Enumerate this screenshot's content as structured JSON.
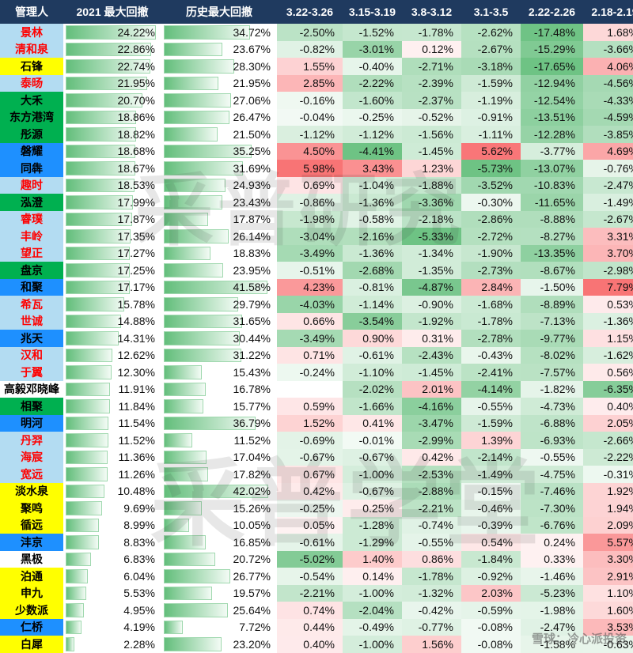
{
  "chart_data": {
    "type": "table",
    "columns": [
      "管理人",
      "2021 最大回撤",
      "历史最大回撤",
      "3.22-3.26",
      "3.15-3.19",
      "3.8-3.12",
      "3.1-3.5",
      "2.22-2.26",
      "2.18-2.19"
    ],
    "rows": [
      {
        "name": "景林",
        "name_bg": "#b3dcf2",
        "name_color": "#ff0000",
        "dd2021": "24.22%",
        "dd_hist": "34.72%",
        "w": [
          "-2.50%",
          "-1.52%",
          "-1.78%",
          "-2.62%",
          "-17.48%",
          "1.68%"
        ]
      },
      {
        "name": "清和泉",
        "name_bg": "#b3dcf2",
        "name_color": "#ff0000",
        "dd2021": "22.86%",
        "dd_hist": "23.67%",
        "w": [
          "-0.82%",
          "-3.01%",
          "0.12%",
          "-2.67%",
          "-15.29%",
          "-3.66%"
        ]
      },
      {
        "name": "石锋",
        "name_bg": "#ffff00",
        "name_color": "#000000",
        "dd2021": "22.74%",
        "dd_hist": "28.30%",
        "w": [
          "1.55%",
          "-0.40%",
          "-2.71%",
          "-3.18%",
          "-17.65%",
          "4.06%"
        ]
      },
      {
        "name": "泰旸",
        "name_bg": "#b3dcf2",
        "name_color": "#ff0000",
        "dd2021": "21.95%",
        "dd_hist": "21.95%",
        "w": [
          "2.85%",
          "-2.22%",
          "-2.39%",
          "-1.59%",
          "-12.94%",
          "-4.56%"
        ]
      },
      {
        "name": "大禾",
        "name_bg": "#00b050",
        "name_color": "#000000",
        "dd2021": "20.70%",
        "dd_hist": "27.06%",
        "w": [
          "-0.16%",
          "-1.60%",
          "-2.37%",
          "-1.19%",
          "-12.54%",
          "-4.33%"
        ]
      },
      {
        "name": "东方港湾",
        "name_bg": "#00b050",
        "name_color": "#000000",
        "dd2021": "18.86%",
        "dd_hist": "26.47%",
        "w": [
          "-0.04%",
          "-0.25%",
          "-0.52%",
          "-0.91%",
          "-13.51%",
          "-4.59%"
        ]
      },
      {
        "name": "彤源",
        "name_bg": "#00b050",
        "name_color": "#000000",
        "dd2021": "18.82%",
        "dd_hist": "21.50%",
        "w": [
          "-1.12%",
          "-1.12%",
          "-1.56%",
          "-1.11%",
          "-12.28%",
          "-3.85%"
        ]
      },
      {
        "name": "磐耀",
        "name_bg": "#1e90ff",
        "name_color": "#000000",
        "dd2021": "18.68%",
        "dd_hist": "35.25%",
        "w": [
          "4.50%",
          "-4.41%",
          "-1.45%",
          "5.62%",
          "-3.77%",
          "4.69%"
        ]
      },
      {
        "name": "同犇",
        "name_bg": "#1e90ff",
        "name_color": "#000000",
        "dd2021": "18.67%",
        "dd_hist": "31.69%",
        "w": [
          "5.98%",
          "3.43%",
          "1.23%",
          "-5.73%",
          "-13.07%",
          "-0.76%"
        ]
      },
      {
        "name": "趣时",
        "name_bg": "#b3dcf2",
        "name_color": "#ff0000",
        "dd2021": "18.53%",
        "dd_hist": "24.93%",
        "w": [
          "0.69%",
          "-1.04%",
          "-1.88%",
          "-3.52%",
          "-10.83%",
          "-2.47%"
        ]
      },
      {
        "name": "泓澄",
        "name_bg": "#00b050",
        "name_color": "#000000",
        "dd2021": "17.99%",
        "dd_hist": "23.43%",
        "w": [
          "-0.86%",
          "-1.36%",
          "-3.36%",
          "-0.30%",
          "-11.65%",
          "-1.49%"
        ]
      },
      {
        "name": "睿璞",
        "name_bg": "#b3dcf2",
        "name_color": "#ff0000",
        "dd2021": "17.87%",
        "dd_hist": "17.87%",
        "w": [
          "-1.98%",
          "-0.58%",
          "-2.18%",
          "-2.86%",
          "-8.88%",
          "-2.67%"
        ]
      },
      {
        "name": "丰岭",
        "name_bg": "#b3dcf2",
        "name_color": "#ff0000",
        "dd2021": "17.35%",
        "dd_hist": "26.14%",
        "w": [
          "-3.04%",
          "-2.16%",
          "-5.33%",
          "-2.72%",
          "-8.27%",
          "3.31%"
        ]
      },
      {
        "name": "望正",
        "name_bg": "#b3dcf2",
        "name_color": "#ff0000",
        "dd2021": "17.27%",
        "dd_hist": "18.83%",
        "w": [
          "-3.49%",
          "-1.36%",
          "-1.34%",
          "-1.90%",
          "-13.35%",
          "3.70%"
        ]
      },
      {
        "name": "盘京",
        "name_bg": "#00b050",
        "name_color": "#000000",
        "dd2021": "17.25%",
        "dd_hist": "23.95%",
        "w": [
          "-0.51%",
          "-2.68%",
          "-1.35%",
          "-2.73%",
          "-8.67%",
          "-2.98%"
        ]
      },
      {
        "name": "和聚",
        "name_bg": "#1e90ff",
        "name_color": "#000000",
        "dd2021": "17.17%",
        "dd_hist": "41.58%",
        "w": [
          "4.23%",
          "-0.81%",
          "-4.87%",
          "2.84%",
          "-1.50%",
          "7.79%"
        ]
      },
      {
        "name": "希瓦",
        "name_bg": "#b3dcf2",
        "name_color": "#ff0000",
        "dd2021": "15.78%",
        "dd_hist": "29.79%",
        "w": [
          "-4.03%",
          "-1.14%",
          "-0.90%",
          "-1.68%",
          "-8.89%",
          "0.53%"
        ]
      },
      {
        "name": "世诚",
        "name_bg": "#b3dcf2",
        "name_color": "#ff0000",
        "dd2021": "14.88%",
        "dd_hist": "31.65%",
        "w": [
          "0.66%",
          "-3.54%",
          "-1.92%",
          "-1.78%",
          "-7.13%",
          "-1.36%"
        ]
      },
      {
        "name": "兆天",
        "name_bg": "#1e90ff",
        "name_color": "#000000",
        "dd2021": "14.31%",
        "dd_hist": "30.44%",
        "w": [
          "-3.49%",
          "0.90%",
          "0.31%",
          "-2.78%",
          "-9.77%",
          "1.15%"
        ]
      },
      {
        "name": "汉和",
        "name_bg": "#b3dcf2",
        "name_color": "#ff0000",
        "dd2021": "12.62%",
        "dd_hist": "31.22%",
        "w": [
          "0.71%",
          "-0.61%",
          "-2.43%",
          "-0.43%",
          "-8.02%",
          "-1.62%"
        ]
      },
      {
        "name": "于翼",
        "name_bg": "#b3dcf2",
        "name_color": "#ff0000",
        "dd2021": "12.30%",
        "dd_hist": "15.43%",
        "w": [
          "-0.24%",
          "-1.10%",
          "-1.45%",
          "-2.41%",
          "-7.57%",
          "0.56%"
        ]
      },
      {
        "name": "高毅邓晓峰",
        "name_bg": "#ffffff",
        "name_color": "#000000",
        "dd2021": "11.91%",
        "dd_hist": "16.78%",
        "w": [
          "",
          "-2.02%",
          "2.01%",
          "-4.14%",
          "-1.82%",
          "-6.35%"
        ]
      },
      {
        "name": "相聚",
        "name_bg": "#00b050",
        "name_color": "#000000",
        "dd2021": "11.84%",
        "dd_hist": "15.77%",
        "w": [
          "0.59%",
          "-1.66%",
          "-4.16%",
          "-0.55%",
          "-4.73%",
          "0.40%"
        ]
      },
      {
        "name": "明河",
        "name_bg": "#1e90ff",
        "name_color": "#000000",
        "dd2021": "11.54%",
        "dd_hist": "36.79%",
        "w": [
          "1.52%",
          "0.41%",
          "-3.47%",
          "-1.59%",
          "-6.88%",
          "2.05%"
        ]
      },
      {
        "name": "丹羿",
        "name_bg": "#b3dcf2",
        "name_color": "#ff0000",
        "dd2021": "11.52%",
        "dd_hist": "11.52%",
        "w": [
          "-0.69%",
          "-0.01%",
          "-2.99%",
          "1.39%",
          "-6.93%",
          "-2.66%"
        ]
      },
      {
        "name": "海宸",
        "name_bg": "#b3dcf2",
        "name_color": "#ff0000",
        "dd2021": "11.36%",
        "dd_hist": "17.04%",
        "w": [
          "-0.67%",
          "-0.67%",
          "0.42%",
          "-2.14%",
          "-0.55%",
          "-2.22%"
        ]
      },
      {
        "name": "宽远",
        "name_bg": "#b3dcf2",
        "name_color": "#ff0000",
        "dd2021": "11.26%",
        "dd_hist": "17.82%",
        "w": [
          "0.67%",
          "-1.00%",
          "-2.53%",
          "-1.49%",
          "-4.75%",
          "-0.31%"
        ]
      },
      {
        "name": "淡水泉",
        "name_bg": "#ffff00",
        "name_color": "#000000",
        "dd2021": "10.48%",
        "dd_hist": "42.02%",
        "w": [
          "0.42%",
          "-0.67%",
          "-2.88%",
          "-0.15%",
          "-7.46%",
          "1.92%"
        ]
      },
      {
        "name": "聚鸣",
        "name_bg": "#ffff00",
        "name_color": "#000000",
        "dd2021": "9.69%",
        "dd_hist": "15.26%",
        "w": [
          "-0.25%",
          "0.25%",
          "-2.21%",
          "-0.46%",
          "-7.30%",
          "1.94%"
        ]
      },
      {
        "name": "循远",
        "name_bg": "#ffff00",
        "name_color": "#000000",
        "dd2021": "8.99%",
        "dd_hist": "10.05%",
        "w": [
          "0.05%",
          "-1.28%",
          "-0.74%",
          "-0.39%",
          "-6.76%",
          "2.09%"
        ]
      },
      {
        "name": "沣京",
        "name_bg": "#1e90ff",
        "name_color": "#000000",
        "dd2021": "8.83%",
        "dd_hist": "16.85%",
        "w": [
          "-0.61%",
          "-1.29%",
          "-0.55%",
          "0.54%",
          "0.24%",
          "5.57%"
        ]
      },
      {
        "name": "黑极",
        "name_bg": "#ffffff",
        "name_color": "#000000",
        "dd2021": "6.83%",
        "dd_hist": "20.72%",
        "w": [
          "-5.02%",
          "1.40%",
          "0.86%",
          "-1.84%",
          "0.33%",
          "3.30%"
        ]
      },
      {
        "name": "泊通",
        "name_bg": "#ffff00",
        "name_color": "#000000",
        "dd2021": "6.04%",
        "dd_hist": "26.77%",
        "w": [
          "-0.54%",
          "0.14%",
          "-1.78%",
          "-0.92%",
          "-1.46%",
          "2.91%"
        ]
      },
      {
        "name": "申九",
        "name_bg": "#ffff00",
        "name_color": "#000000",
        "dd2021": "5.53%",
        "dd_hist": "19.57%",
        "w": [
          "-2.21%",
          "-1.00%",
          "-1.32%",
          "2.03%",
          "-5.23%",
          "1.10%"
        ]
      },
      {
        "name": "少数派",
        "name_bg": "#ffff00",
        "name_color": "#000000",
        "dd2021": "4.95%",
        "dd_hist": "25.64%",
        "w": [
          "0.74%",
          "-2.04%",
          "-0.42%",
          "-0.59%",
          "-1.98%",
          "1.60%"
        ]
      },
      {
        "name": "仁桥",
        "name_bg": "#1e90ff",
        "name_color": "#000000",
        "dd2021": "4.19%",
        "dd_hist": "7.72%",
        "w": [
          "0.44%",
          "-0.49%",
          "-0.77%",
          "-0.08%",
          "-2.47%",
          "3.53%"
        ]
      },
      {
        "name": "白犀",
        "name_bg": "#ffff00",
        "name_color": "#000000",
        "dd2021": "2.28%",
        "dd_hist": "23.20%",
        "w": [
          "0.40%",
          "-1.00%",
          "1.56%",
          "-0.08%",
          "-1.58%",
          "-0.63%"
        ]
      }
    ]
  },
  "colors": {
    "header_bg": "#1f3a5f",
    "positive": "#f8696b",
    "negative": "#63be7b",
    "bar": "#63be7b"
  },
  "watermark": {
    "top": "采普研究",
    "mid": "采普学堂",
    "corner": "雪球：冷心派投资"
  }
}
